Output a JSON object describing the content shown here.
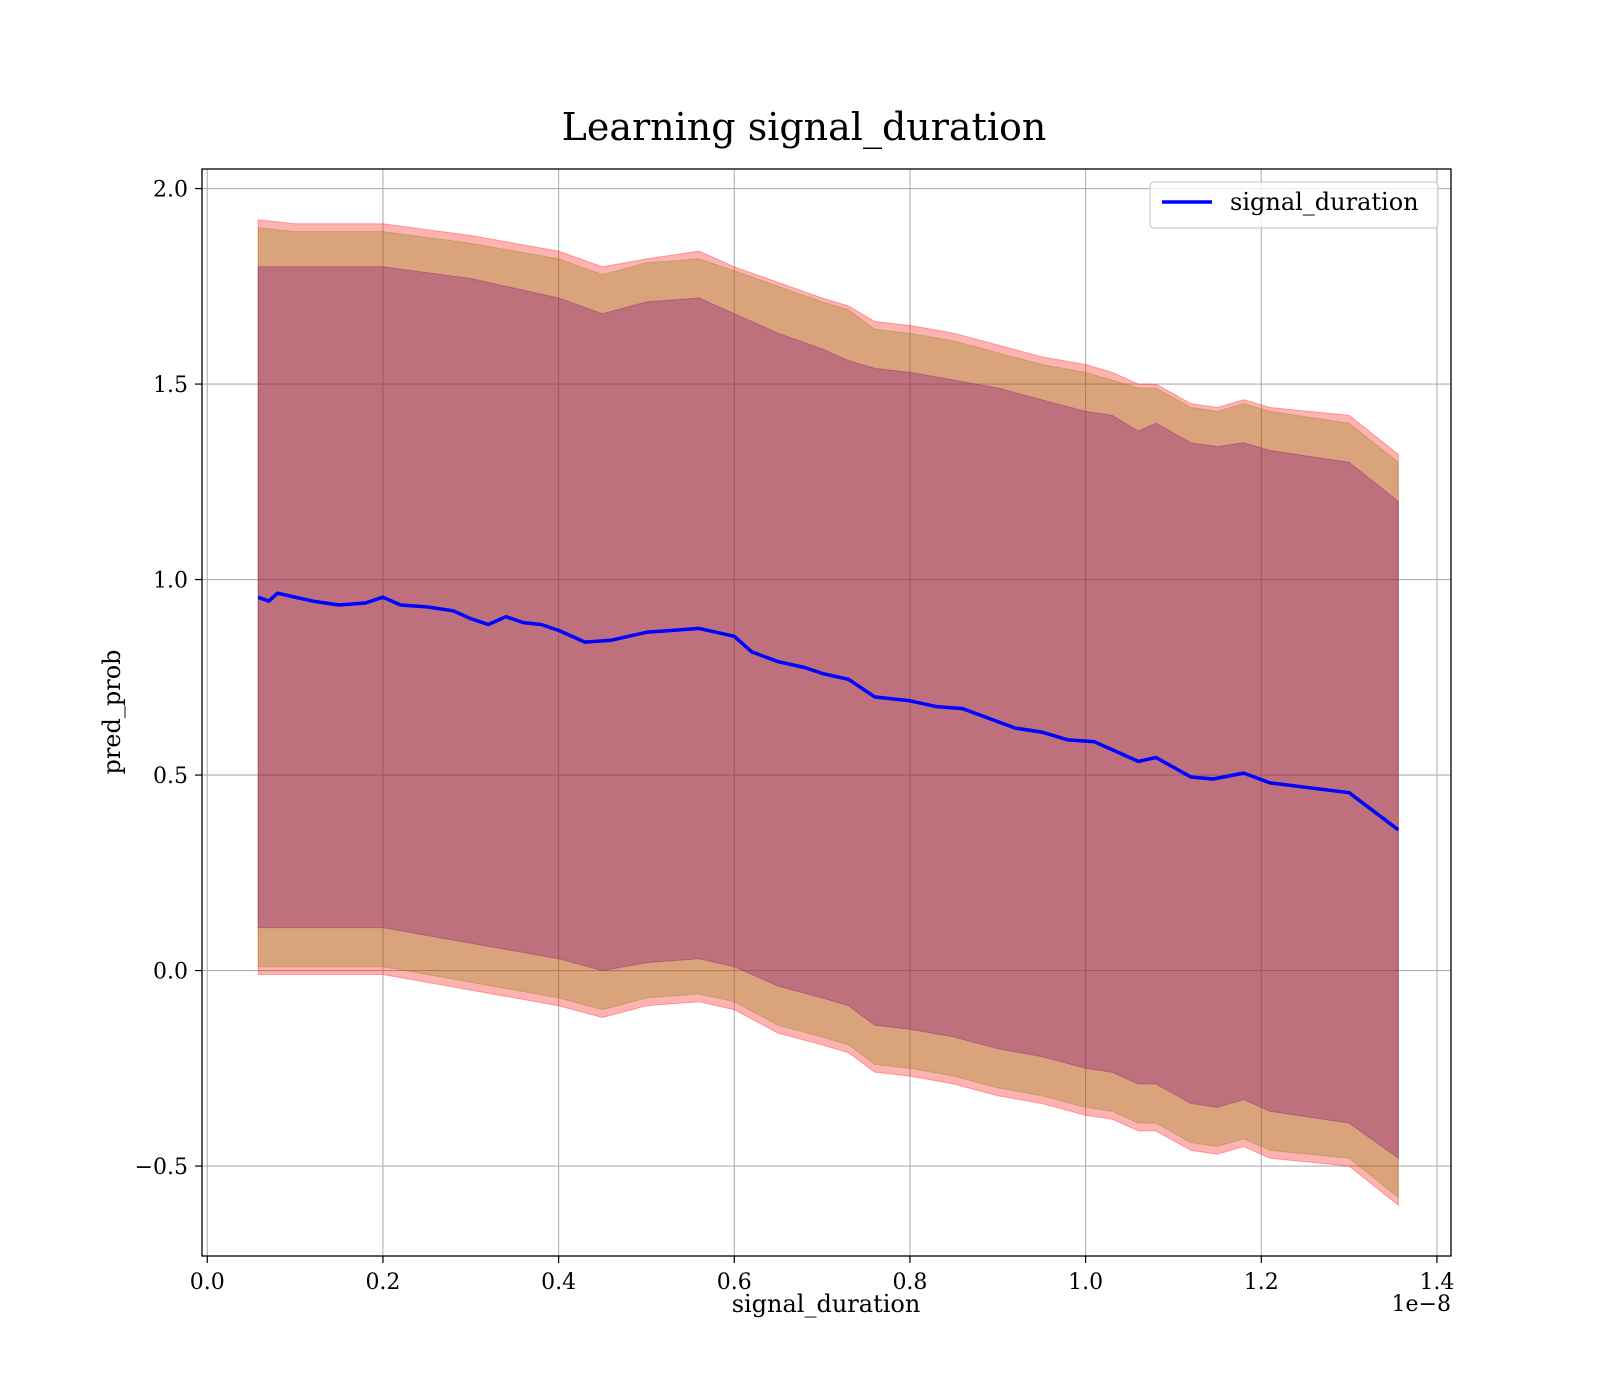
{
  "chart_data": {
    "type": "line",
    "title": "Learning signal_duration",
    "xlabel": "signal_duration",
    "ylabel": "pred_prob",
    "x_offset_label": "1e−8",
    "xlim": [
      -0.006,
      1.416
    ],
    "ylim": [
      -0.73,
      2.05
    ],
    "x_ticks": [
      0.0,
      0.2,
      0.4,
      0.6,
      0.8,
      1.0,
      1.2,
      1.4
    ],
    "x_tick_labels": [
      "0.0",
      "0.2",
      "0.4",
      "0.6",
      "0.8",
      "1.0",
      "1.2",
      "1.4"
    ],
    "y_ticks": [
      -0.5,
      0.0,
      0.5,
      1.0,
      1.5,
      2.0
    ],
    "y_tick_labels": [
      "−0.5",
      "0.0",
      "0.5",
      "1.0",
      "1.5",
      "2.0"
    ],
    "grid": true,
    "legend_position": "top-right",
    "series": [
      {
        "name": "signal_duration",
        "color": "#0000ff",
        "x": [
          0.058,
          0.07,
          0.08,
          0.1,
          0.12,
          0.15,
          0.18,
          0.2,
          0.22,
          0.25,
          0.28,
          0.3,
          0.32,
          0.34,
          0.36,
          0.38,
          0.4,
          0.43,
          0.46,
          0.5,
          0.53,
          0.56,
          0.6,
          0.62,
          0.65,
          0.68,
          0.7,
          0.73,
          0.76,
          0.8,
          0.83,
          0.86,
          0.89,
          0.92,
          0.95,
          0.98,
          1.01,
          1.03,
          1.06,
          1.08,
          1.12,
          1.145,
          1.18,
          1.21,
          1.3,
          1.356
        ],
        "values": [
          0.955,
          0.945,
          0.965,
          0.955,
          0.945,
          0.935,
          0.94,
          0.955,
          0.935,
          0.93,
          0.92,
          0.9,
          0.885,
          0.905,
          0.89,
          0.885,
          0.87,
          0.84,
          0.845,
          0.865,
          0.87,
          0.875,
          0.855,
          0.815,
          0.79,
          0.775,
          0.76,
          0.745,
          0.7,
          0.69,
          0.675,
          0.67,
          0.645,
          0.62,
          0.61,
          0.59,
          0.585,
          0.565,
          0.535,
          0.545,
          0.495,
          0.49,
          0.505,
          0.48,
          0.455,
          0.36
        ]
      }
    ],
    "bands": [
      {
        "color": "#ff0000",
        "opacity": 0.3,
        "x": [
          0.058,
          0.1,
          0.2,
          0.3,
          0.4,
          0.45,
          0.5,
          0.56,
          0.6,
          0.65,
          0.7,
          0.73,
          0.76,
          0.8,
          0.85,
          0.9,
          0.95,
          1.0,
          1.03,
          1.06,
          1.08,
          1.12,
          1.15,
          1.18,
          1.21,
          1.3,
          1.356
        ],
        "upper": [
          1.92,
          1.91,
          1.91,
          1.88,
          1.84,
          1.8,
          1.82,
          1.84,
          1.8,
          1.76,
          1.72,
          1.7,
          1.66,
          1.65,
          1.63,
          1.6,
          1.57,
          1.55,
          1.53,
          1.5,
          1.5,
          1.45,
          1.44,
          1.46,
          1.44,
          1.42,
          1.32
        ],
        "lower": [
          -0.01,
          -0.01,
          -0.01,
          -0.05,
          -0.09,
          -0.12,
          -0.09,
          -0.08,
          -0.1,
          -0.16,
          -0.19,
          -0.21,
          -0.26,
          -0.27,
          -0.29,
          -0.32,
          -0.34,
          -0.37,
          -0.38,
          -0.41,
          -0.41,
          -0.46,
          -0.47,
          -0.45,
          -0.48,
          -0.5,
          -0.6
        ]
      },
      {
        "color": "#808000",
        "opacity": 0.3,
        "x": [
          0.058,
          0.1,
          0.2,
          0.3,
          0.4,
          0.45,
          0.5,
          0.56,
          0.6,
          0.65,
          0.7,
          0.73,
          0.76,
          0.8,
          0.85,
          0.9,
          0.95,
          1.0,
          1.03,
          1.06,
          1.08,
          1.12,
          1.15,
          1.18,
          1.21,
          1.3,
          1.356
        ],
        "upper": [
          1.9,
          1.89,
          1.89,
          1.86,
          1.82,
          1.78,
          1.81,
          1.82,
          1.79,
          1.75,
          1.71,
          1.69,
          1.64,
          1.63,
          1.61,
          1.58,
          1.55,
          1.53,
          1.51,
          1.49,
          1.49,
          1.44,
          1.43,
          1.45,
          1.43,
          1.4,
          1.3
        ],
        "lower": [
          0.01,
          0.01,
          0.01,
          -0.03,
          -0.07,
          -0.1,
          -0.07,
          -0.06,
          -0.08,
          -0.14,
          -0.17,
          -0.19,
          -0.24,
          -0.25,
          -0.27,
          -0.3,
          -0.32,
          -0.35,
          -0.36,
          -0.39,
          -0.39,
          -0.44,
          -0.45,
          -0.43,
          -0.46,
          -0.48,
          -0.58
        ]
      },
      {
        "color": "#800080",
        "opacity": 0.3,
        "x": [
          0.058,
          0.1,
          0.2,
          0.3,
          0.4,
          0.45,
          0.5,
          0.56,
          0.6,
          0.65,
          0.7,
          0.73,
          0.76,
          0.8,
          0.85,
          0.9,
          0.95,
          1.0,
          1.03,
          1.06,
          1.08,
          1.12,
          1.15,
          1.18,
          1.21,
          1.3,
          1.356
        ],
        "upper": [
          1.8,
          1.8,
          1.8,
          1.77,
          1.72,
          1.68,
          1.71,
          1.72,
          1.68,
          1.63,
          1.59,
          1.56,
          1.54,
          1.53,
          1.51,
          1.49,
          1.46,
          1.43,
          1.42,
          1.38,
          1.4,
          1.35,
          1.34,
          1.35,
          1.33,
          1.3,
          1.2
        ],
        "lower": [
          0.11,
          0.11,
          0.11,
          0.07,
          0.03,
          0.0,
          0.02,
          0.03,
          0.01,
          -0.04,
          -0.07,
          -0.09,
          -0.14,
          -0.15,
          -0.17,
          -0.2,
          -0.22,
          -0.25,
          -0.26,
          -0.29,
          -0.29,
          -0.34,
          -0.35,
          -0.33,
          -0.36,
          -0.39,
          -0.48
        ]
      }
    ]
  }
}
